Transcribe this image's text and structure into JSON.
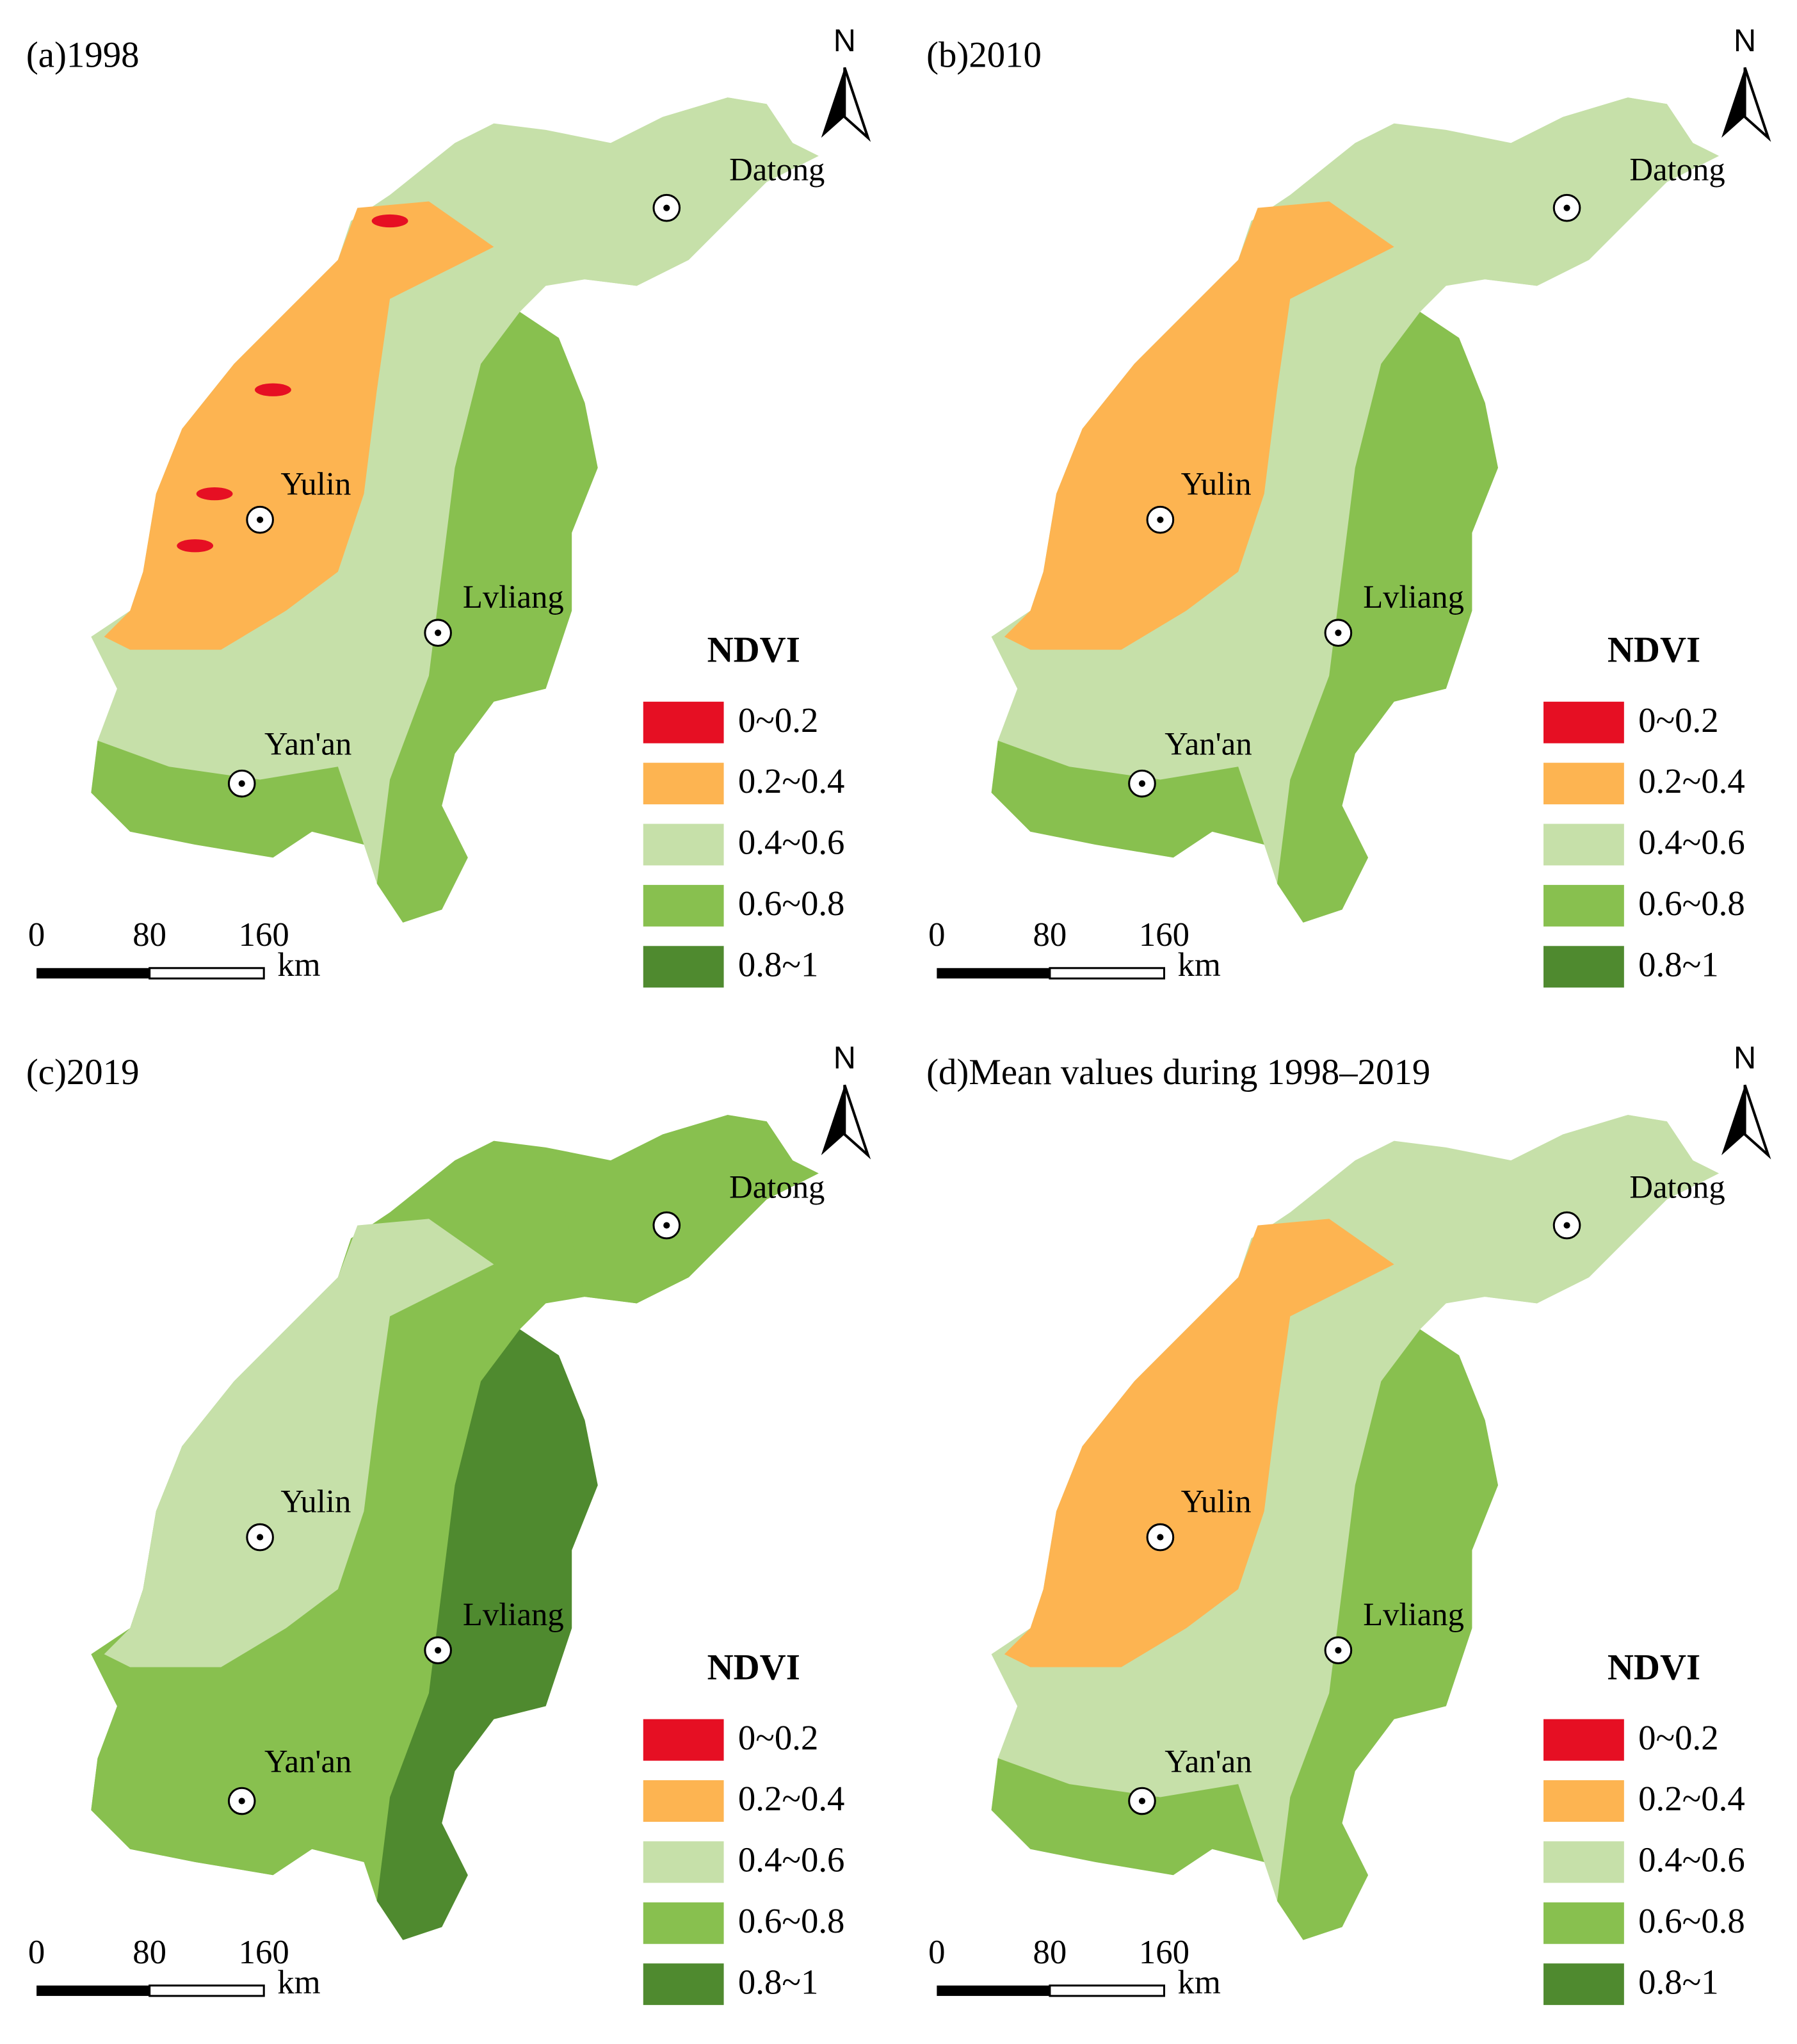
{
  "panels": [
    {
      "title": "(a)1998",
      "north": "N",
      "cities": [
        {
          "name": "Datong"
        },
        {
          "name": "Yulin"
        },
        {
          "name": "Lvliang"
        },
        {
          "name": "Yan'an"
        }
      ],
      "legend": {
        "title": "NDVI",
        "items": [
          {
            "label": "0~0.2",
            "color": "#e60f23"
          },
          {
            "label": "0.2~0.4",
            "color": "#fdb451"
          },
          {
            "label": "0.4~0.6",
            "color": "#c6e0a9"
          },
          {
            "label": "0.6~0.8",
            "color": "#88c04f"
          },
          {
            "label": "0.8~1",
            "color": "#4f8a2f"
          }
        ]
      },
      "scale_bar": {
        "ticks": [
          0,
          80,
          160
        ],
        "unit": "km"
      }
    },
    {
      "title": "(b)2010",
      "north": "N",
      "cities": [
        {
          "name": "Datong"
        },
        {
          "name": "Yulin"
        },
        {
          "name": "Lvliang"
        },
        {
          "name": "Yan'an"
        }
      ],
      "legend": {
        "title": "NDVI",
        "items": [
          {
            "label": "0~0.2",
            "color": "#e60f23"
          },
          {
            "label": "0.2~0.4",
            "color": "#fdb451"
          },
          {
            "label": "0.4~0.6",
            "color": "#c6e0a9"
          },
          {
            "label": "0.6~0.8",
            "color": "#88c04f"
          },
          {
            "label": "0.8~1",
            "color": "#4f8a2f"
          }
        ]
      },
      "scale_bar": {
        "ticks": [
          0,
          80,
          160
        ],
        "unit": "km"
      }
    },
    {
      "title": "(c)2019",
      "north": "N",
      "cities": [
        {
          "name": "Datong"
        },
        {
          "name": "Yulin"
        },
        {
          "name": "Lvliang"
        },
        {
          "name": "Yan'an"
        }
      ],
      "legend": {
        "title": "NDVI",
        "items": [
          {
            "label": "0~0.2",
            "color": "#e60f23"
          },
          {
            "label": "0.2~0.4",
            "color": "#fdb451"
          },
          {
            "label": "0.4~0.6",
            "color": "#c6e0a9"
          },
          {
            "label": "0.6~0.8",
            "color": "#88c04f"
          },
          {
            "label": "0.8~1",
            "color": "#4f8a2f"
          }
        ]
      },
      "scale_bar": {
        "ticks": [
          0,
          80,
          160
        ],
        "unit": "km"
      }
    },
    {
      "title": "(d)Mean values during 1998–2019",
      "north": "N",
      "cities": [
        {
          "name": "Datong"
        },
        {
          "name": "Yulin"
        },
        {
          "name": "Lvliang"
        },
        {
          "name": "Yan'an"
        }
      ],
      "legend": {
        "title": "NDVI",
        "items": [
          {
            "label": "0~0.2",
            "color": "#e60f23"
          },
          {
            "label": "0.2~0.4",
            "color": "#fdb451"
          },
          {
            "label": "0.4~0.6",
            "color": "#c6e0a9"
          },
          {
            "label": "0.6~0.8",
            "color": "#88c04f"
          },
          {
            "label": "0.8~1",
            "color": "#4f8a2f"
          }
        ]
      },
      "scale_bar": {
        "ticks": [
          0,
          80,
          160
        ],
        "unit": "km"
      }
    }
  ]
}
